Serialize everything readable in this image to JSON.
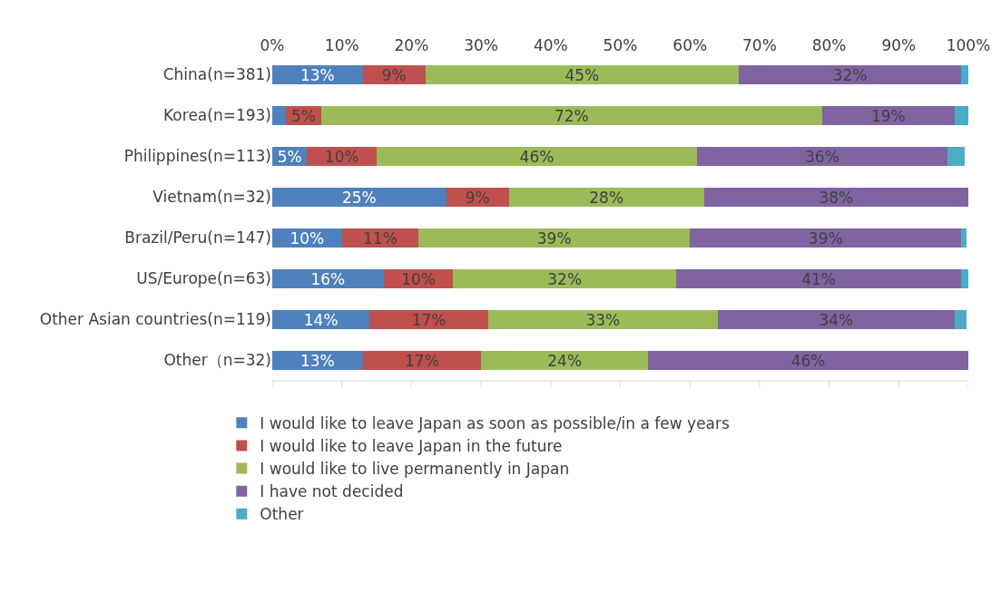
{
  "chart_data": {
    "type": "bar",
    "orientation": "horizontal",
    "stacked": true,
    "legend": "bottom",
    "categories": [
      "China(n=381)",
      "Korea(n=193)",
      "Philippines(n=113)",
      "Vietnam(n=32)",
      "Brazil/Peru(n=147)",
      "US/Europe(n=63)",
      "Other Asian countries(n=119)",
      "Other（n=32)"
    ],
    "series": [
      {
        "name": "I would like to leave Japan as soon as possible/in a few years",
        "color": "#4f81bd",
        "values": [
          13,
          2,
          5,
          25,
          10,
          16,
          14,
          13
        ],
        "value_labels": [
          "13%",
          null,
          "5%",
          "25%",
          "10%",
          "16%",
          "14%",
          "13%"
        ]
      },
      {
        "name": "I would like to leave Japan in the future",
        "color": "#c0504d",
        "values": [
          9,
          5,
          10,
          9,
          11,
          10,
          17,
          17
        ],
        "value_labels": [
          "9%",
          "5%",
          "10%",
          "9%",
          "11%",
          "10%",
          "17%",
          "17%"
        ]
      },
      {
        "name": "I would like to live permanently in Japan",
        "color": "#9bbb59",
        "values": [
          45,
          72,
          46,
          28,
          39,
          32,
          33,
          24
        ],
        "value_labels": [
          "45%",
          "72%",
          "46%",
          "28%",
          "39%",
          "32%",
          "33%",
          "24%"
        ]
      },
      {
        "name": "I have not decided",
        "color": "#8064a2",
        "values": [
          32,
          19,
          36,
          38,
          39,
          41,
          34,
          46
        ],
        "value_labels": [
          "32%",
          "19%",
          "36%",
          "38%",
          "39%",
          "41%",
          "34%",
          "46%"
        ]
      },
      {
        "name": "Other",
        "color": "#4bacc6",
        "values": [
          1,
          2,
          2.5,
          0,
          0.7,
          1,
          1.7,
          0
        ],
        "value_labels": [
          null,
          null,
          null,
          null,
          null,
          null,
          null,
          null
        ]
      }
    ],
    "xlim": [
      0,
      100
    ],
    "xticks": [
      {
        "value": 0,
        "label": "0%"
      },
      {
        "value": 10,
        "label": "10%"
      },
      {
        "value": 20,
        "label": "20%"
      },
      {
        "value": 30,
        "label": "30%"
      },
      {
        "value": 40,
        "label": "40%"
      },
      {
        "value": 50,
        "label": "50%"
      },
      {
        "value": 60,
        "label": "60%"
      },
      {
        "value": 70,
        "label": "70%"
      },
      {
        "value": 80,
        "label": "80%"
      },
      {
        "value": 90,
        "label": "90%"
      },
      {
        "value": 100,
        "label": "100%"
      }
    ]
  }
}
